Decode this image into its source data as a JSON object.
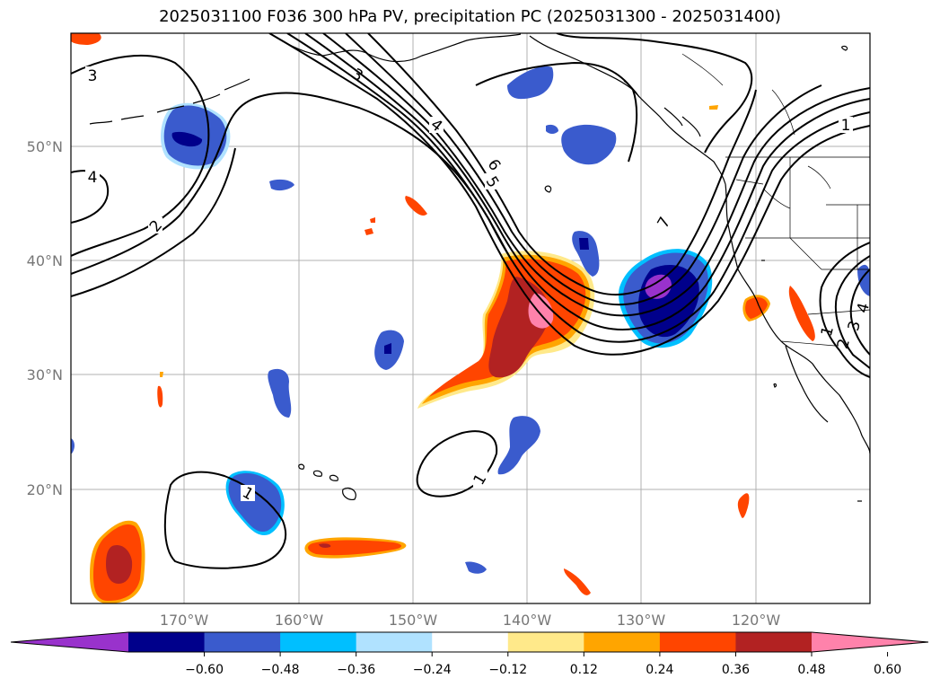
{
  "title": "2025031100 F036 300 hPa PV, precipitation PC (2025031300 - 2025031400)",
  "lat_labels": [
    "50°N",
    "40°N",
    "30°N",
    "20°N"
  ],
  "lon_labels": [
    "170°W",
    "160°W",
    "150°W",
    "140°W",
    "130°W",
    "120°W"
  ],
  "colorbar": {
    "ticks": [
      "−0.60",
      "−0.48",
      "−0.36",
      "−0.24",
      "−0.12",
      "0.12",
      "0.24",
      "0.36",
      "0.48",
      "0.60"
    ],
    "colors": [
      "#9932cc",
      "#00008b",
      "#3a5bcd",
      "#00bfff",
      "#b0e2ff",
      "#ffffff",
      "#ffe98a",
      "#ffa500",
      "#ff4500",
      "#b22222",
      "#ff82ab"
    ]
  },
  "contour_labels": [
    "3",
    "4",
    "2",
    "3",
    "4",
    "6",
    "5",
    "7",
    "1",
    "1",
    "1",
    "1",
    "2",
    "3",
    "4"
  ]
}
